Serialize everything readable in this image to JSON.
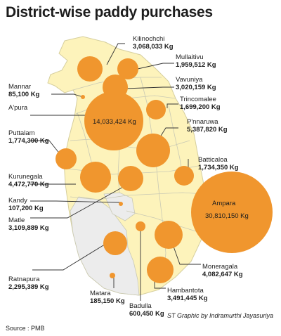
{
  "title": "District-wise paddy purchases",
  "source": "Source : PMB",
  "credit": "ST Graphic by  Indramurthi Jayasuriya",
  "colors": {
    "bubble": "#f0962e",
    "land": "#fdf3bb",
    "highlight": "#e8e8e8",
    "border": "#c9c9b4",
    "leader": "#333333"
  },
  "districts": [
    {
      "name": "Kilinochchi",
      "value": "3,068,033 Kg"
    },
    {
      "name": "Mullaitivu",
      "value": "1,959,512 Kg"
    },
    {
      "name": "Mannar",
      "value": "85,100 Kg"
    },
    {
      "name": "Vavuniya",
      "value": "3,020,159 Kg"
    },
    {
      "name": "A'pura",
      "value": "14,033,424 Kg"
    },
    {
      "name": "Trincomalee",
      "value": "1,699,200 Kg"
    },
    {
      "name": "P'nnaruwa",
      "value": "5,387,820 Kg"
    },
    {
      "name": "Puttalam",
      "value": "1,774,300 Kg"
    },
    {
      "name": "Batticaloa",
      "value": "1,734,350 Kg"
    },
    {
      "name": "Kurunegala",
      "value": "4,472,770 Kg"
    },
    {
      "name": "Kandy",
      "value": "107,200 Kg"
    },
    {
      "name": "Ampara",
      "value": "30,810,150 Kg"
    },
    {
      "name": "Matle",
      "value": "3,109,889 Kg"
    },
    {
      "name": "Moneragala",
      "value": "4,082,647 Kg"
    },
    {
      "name": "Ratnapura",
      "value": "2,295,389 Kg"
    },
    {
      "name": "Hambantota",
      "value": "3,491,445 Kg"
    },
    {
      "name": "Matara",
      "value": "185,150 Kg"
    },
    {
      "name": "Badulla",
      "value": "600,450 Kg"
    }
  ]
}
